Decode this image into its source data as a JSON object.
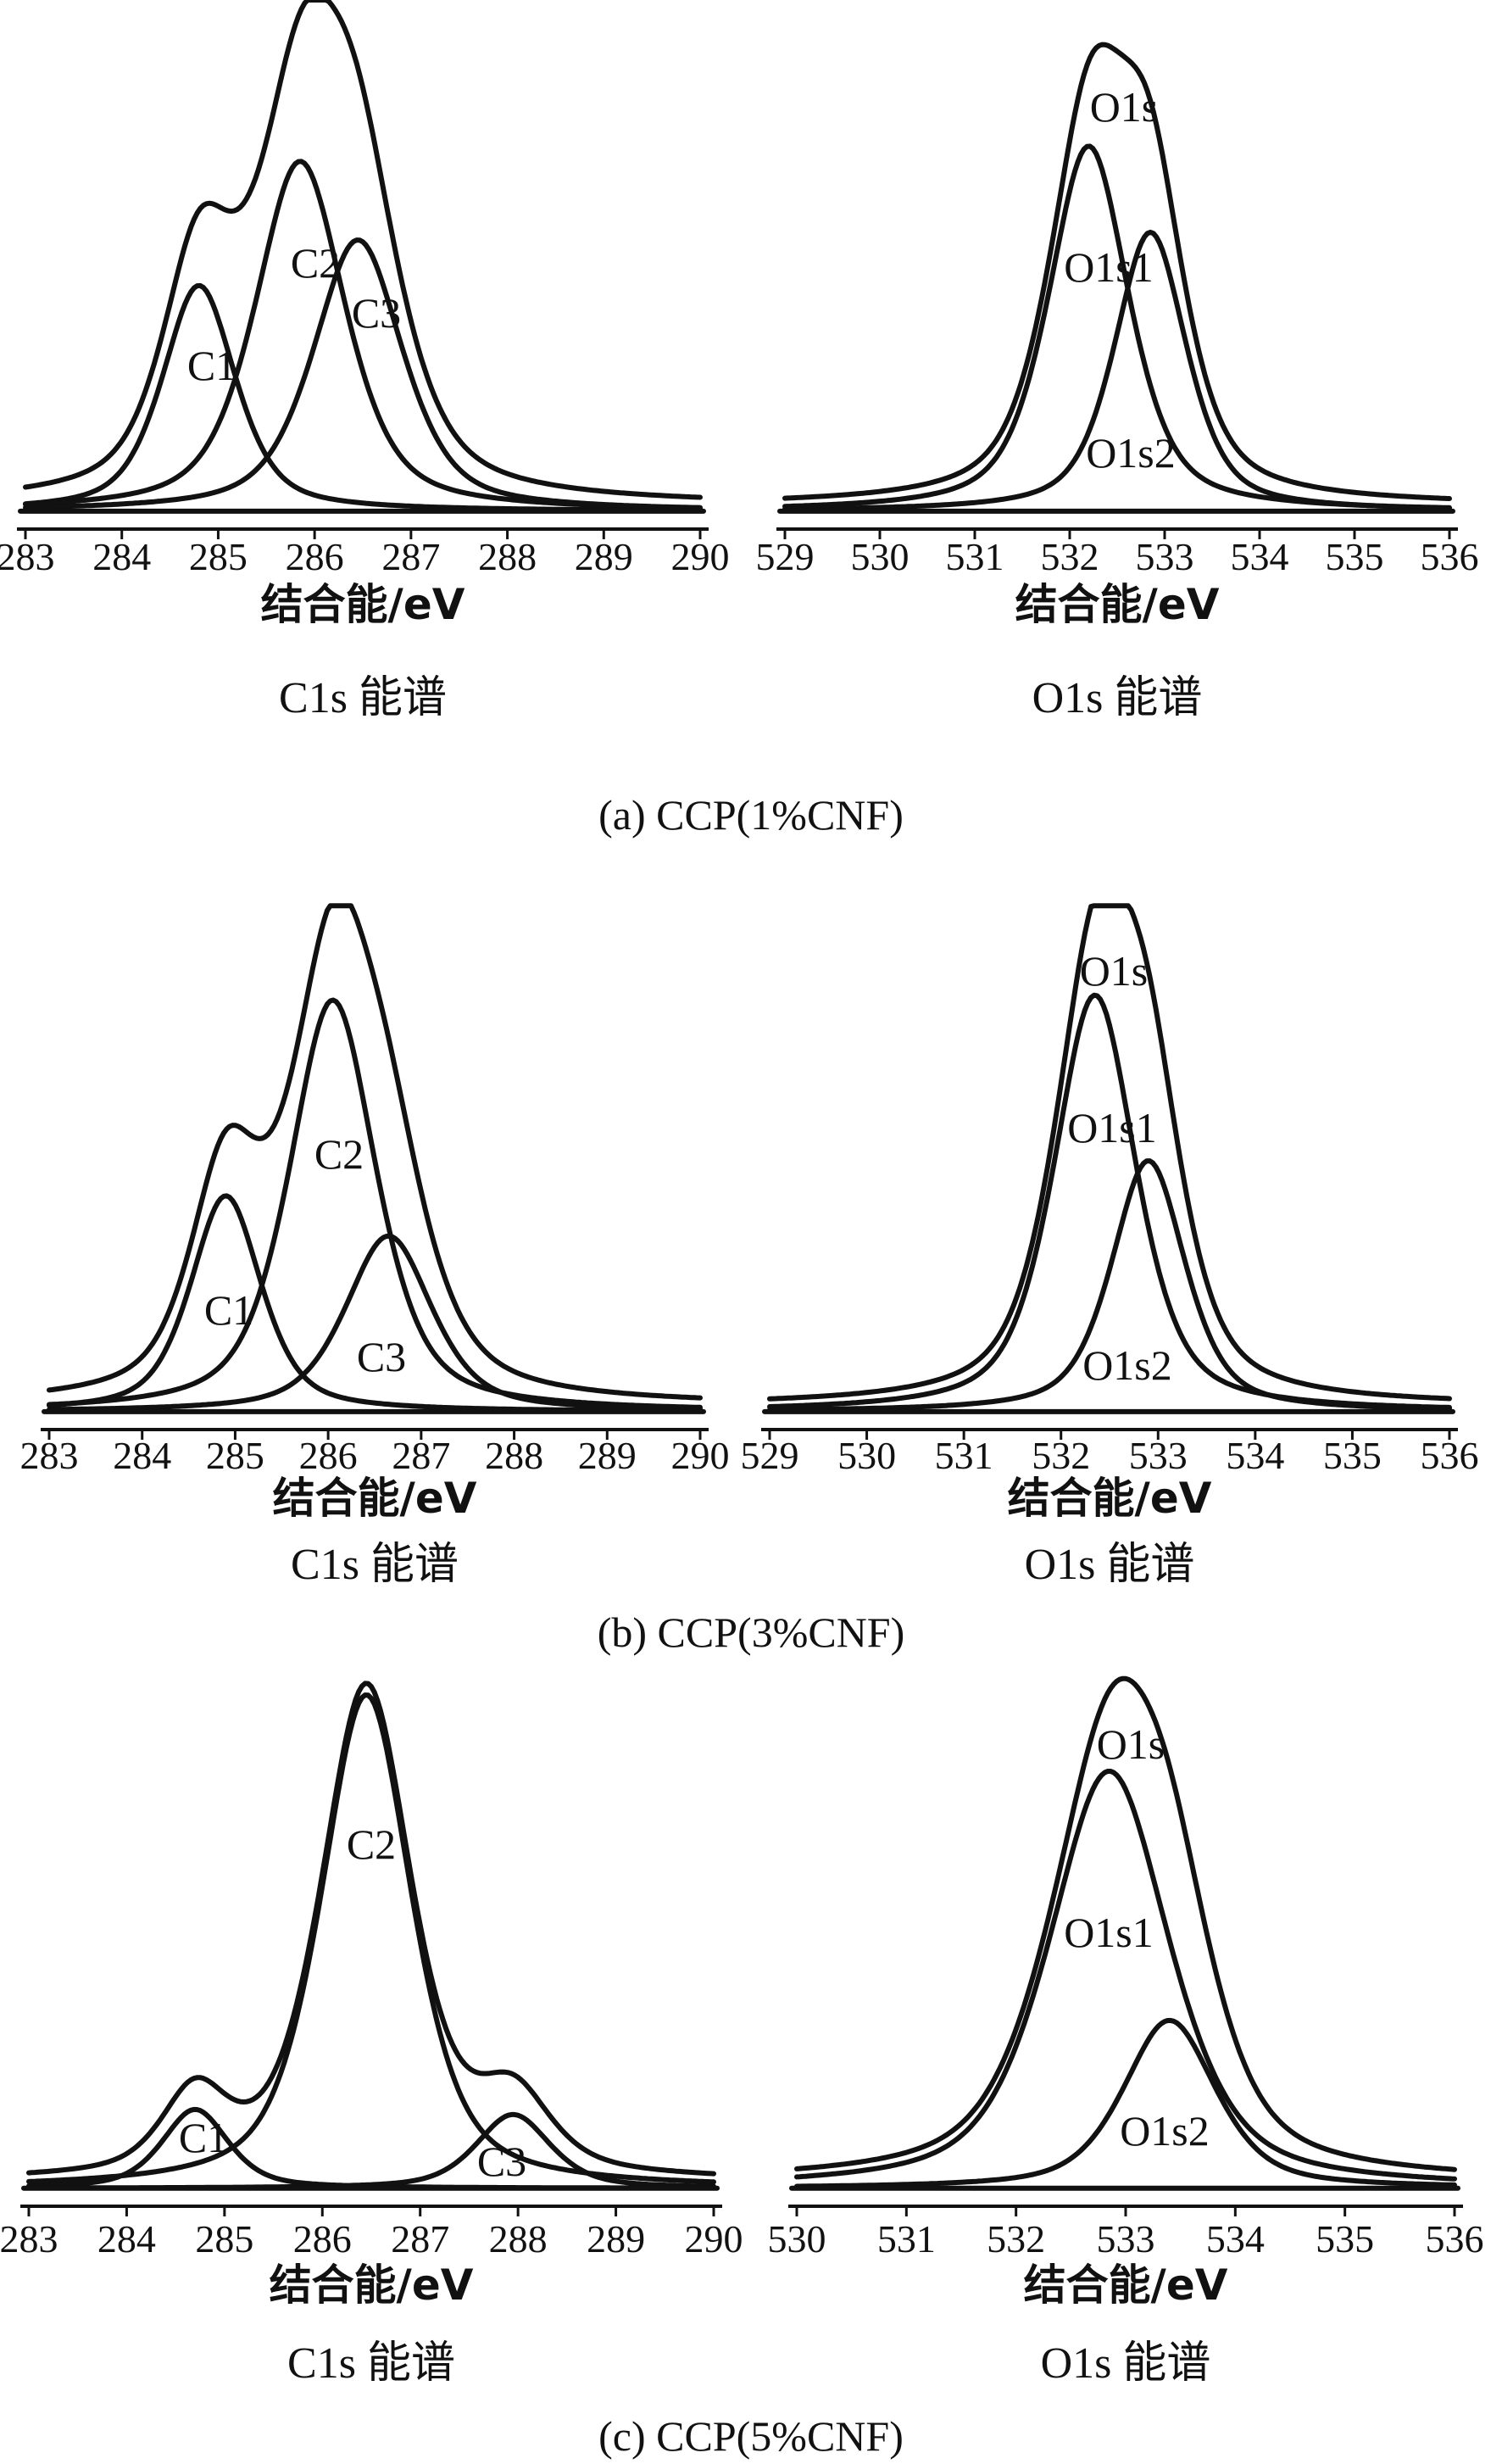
{
  "chart_data": [
    {
      "id": "a-c1s",
      "type": "line",
      "xlabel": "结合能/eV",
      "title": "C1s 能谱",
      "xlim": [
        283,
        290
      ],
      "xticks": [
        283,
        284,
        285,
        286,
        287,
        288,
        289,
        290
      ],
      "series": [
        {
          "name": "C1",
          "center": 284.8,
          "height": 0.445,
          "width": 0.45
        },
        {
          "name": "C2",
          "center": 285.85,
          "height": 0.69,
          "width": 0.55
        },
        {
          "name": "C3",
          "center": 286.45,
          "height": 0.535,
          "width": 0.55
        }
      ],
      "envelope": true
    },
    {
      "id": "a-o1s",
      "type": "line",
      "xlabel": "结合能/eV",
      "title": "O1s 能谱",
      "xlim": [
        529,
        536
      ],
      "xticks": [
        529,
        530,
        531,
        532,
        533,
        534,
        535,
        536
      ],
      "series": [
        {
          "name": "O1s",
          "envelope": true
        },
        {
          "name": "O1s1",
          "center": 532.2,
          "height": 0.72,
          "width": 0.5
        },
        {
          "name": "O1s2",
          "center": 532.85,
          "height": 0.55,
          "width": 0.45
        }
      ],
      "envelope": true
    },
    {
      "id": "b-c1s",
      "type": "line",
      "xlabel": "结合能/eV",
      "title": "C1s 能谱",
      "xlim": [
        283,
        290
      ],
      "xticks": [
        283,
        284,
        285,
        286,
        287,
        288,
        289,
        290
      ],
      "series": [
        {
          "name": "C1",
          "center": 284.9,
          "height": 0.43,
          "width": 0.45
        },
        {
          "name": "C2",
          "center": 286.05,
          "height": 0.82,
          "width": 0.55
        },
        {
          "name": "C3",
          "center": 286.65,
          "height": 0.35,
          "width": 0.55
        }
      ],
      "envelope": true
    },
    {
      "id": "b-o1s",
      "type": "line",
      "xlabel": "结合能/eV",
      "title": "O1s 能谱",
      "xlim": [
        529,
        536
      ],
      "xticks": [
        529,
        530,
        531,
        532,
        533,
        534,
        535,
        536
      ],
      "series": [
        {
          "name": "O1s",
          "envelope": true
        },
        {
          "name": "O1s1",
          "center": 532.35,
          "height": 0.83,
          "width": 0.5
        },
        {
          "name": "O1s2",
          "center": 532.9,
          "height": 0.5,
          "width": 0.45
        }
      ],
      "envelope": true
    },
    {
      "id": "c-c1s",
      "type": "line",
      "xlabel": "结合能/eV",
      "title": "C1s 能谱",
      "xlim": [
        283,
        290
      ],
      "xticks": [
        283,
        284,
        285,
        286,
        287,
        288,
        289,
        290
      ],
      "series": [
        {
          "name": "C1",
          "center": 284.7,
          "height": 0.155,
          "width": 0.4
        },
        {
          "name": "C2",
          "center": 286.45,
          "height": 0.97,
          "width": 0.55
        },
        {
          "name": "C3",
          "center": 287.95,
          "height": 0.145,
          "width": 0.45
        }
      ],
      "envelope": true
    },
    {
      "id": "c-o1s",
      "type": "line",
      "xlabel": "结合能/eV",
      "title": "O1s 能谱",
      "xlim": [
        530,
        536
      ],
      "xticks": [
        530,
        531,
        532,
        533,
        534,
        535,
        536
      ],
      "series": [
        {
          "name": "O1s",
          "envelope": true
        },
        {
          "name": "O1s1",
          "center": 532.85,
          "height": 0.82,
          "width": 0.65
        },
        {
          "name": "O1s2",
          "center": 533.4,
          "height": 0.33,
          "width": 0.5
        }
      ],
      "envelope": true
    }
  ],
  "captions": [
    "(a) CCP(1%CNF)",
    "(b) CCP(3%CNF)",
    "(c) CCP(5%CNF)"
  ]
}
